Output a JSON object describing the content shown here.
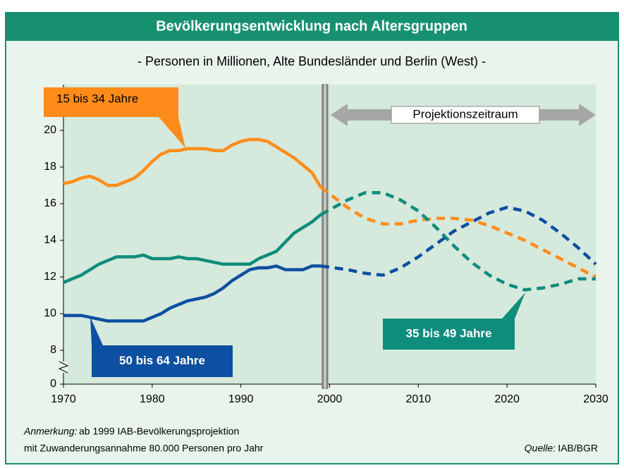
{
  "chart_data": {
    "type": "line",
    "title": "Bevölkerungsentwicklung nach Altersgruppen",
    "subtitle": "- Personen in Millionen,  Alte Bundesländer und Berlin (West) -",
    "x": [
      1970,
      1971,
      1972,
      1973,
      1974,
      1975,
      1976,
      1977,
      1978,
      1979,
      1980,
      1981,
      1982,
      1983,
      1984,
      1985,
      1986,
      1987,
      1988,
      1989,
      1990,
      1991,
      1992,
      1993,
      1994,
      1995,
      1996,
      1997,
      1998,
      1999,
      2002,
      2004,
      2006,
      2008,
      2010,
      2012,
      2014,
      2016,
      2018,
      2020,
      2022,
      2024,
      2026,
      2028,
      2030
    ],
    "series": [
      {
        "name": "15 bis 34 Jahre",
        "color": "#ff8c1a",
        "values": [
          17.1,
          17.2,
          17.4,
          17.5,
          17.3,
          17.0,
          17.0,
          17.2,
          17.4,
          17.8,
          18.3,
          18.7,
          18.9,
          18.9,
          19.0,
          19.0,
          19.0,
          18.9,
          18.9,
          19.2,
          19.4,
          19.5,
          19.5,
          19.4,
          19.1,
          18.8,
          18.5,
          18.1,
          17.7,
          16.9,
          15.8,
          15.2,
          14.9,
          14.9,
          15.1,
          15.2,
          15.2,
          15.1,
          14.8,
          14.4,
          14.0,
          13.5,
          13.0,
          12.5,
          12.0
        ]
      },
      {
        "name": "35 bis 49 Jahre",
        "color": "#0e8c7c",
        "values": [
          11.7,
          11.9,
          12.1,
          12.4,
          12.7,
          12.9,
          13.1,
          13.1,
          13.1,
          13.2,
          13.0,
          13.0,
          13.0,
          13.1,
          13.0,
          13.0,
          12.9,
          12.8,
          12.7,
          12.7,
          12.7,
          12.7,
          13.0,
          13.2,
          13.4,
          13.9,
          14.4,
          14.7,
          15.0,
          15.4,
          16.2,
          16.6,
          16.6,
          16.2,
          15.6,
          14.7,
          13.7,
          12.8,
          12.1,
          11.6,
          11.3,
          11.4,
          11.6,
          11.9,
          11.9
        ]
      },
      {
        "name": "50 bis 64 Jahre",
        "color": "#0d4fa0",
        "values": [
          9.9,
          9.9,
          9.9,
          9.8,
          9.7,
          9.6,
          9.6,
          9.6,
          9.6,
          9.6,
          9.8,
          10.0,
          10.3,
          10.5,
          10.7,
          10.8,
          10.9,
          11.1,
          11.4,
          11.8,
          12.1,
          12.4,
          12.5,
          12.5,
          12.6,
          12.4,
          12.4,
          12.4,
          12.6,
          12.6,
          12.4,
          12.2,
          12.1,
          12.5,
          13.1,
          13.8,
          14.5,
          15.0,
          15.5,
          15.8,
          15.6,
          15.1,
          14.4,
          13.6,
          12.7
        ]
      }
    ],
    "projection_start": 1999,
    "projection_label": "Projektionszeitraum",
    "xlim": [
      1970,
      2030
    ],
    "xticks": [
      1970,
      1980,
      1990,
      2000,
      2010,
      2020,
      2030
    ],
    "ylim": [
      0,
      22.5
    ],
    "yticks": [
      0,
      8,
      10,
      12,
      14,
      16,
      18,
      20
    ],
    "y_axis_break": true,
    "note": {
      "label": "Anmerkung:",
      "lines": [
        "ab 1999 IAB-Bevölkerungsprojektion",
        "mit Zuwanderungsannahme 80.000 Personen pro Jahr"
      ]
    },
    "source": {
      "label": "Quelle:",
      "text": "IAB/BGR"
    }
  }
}
